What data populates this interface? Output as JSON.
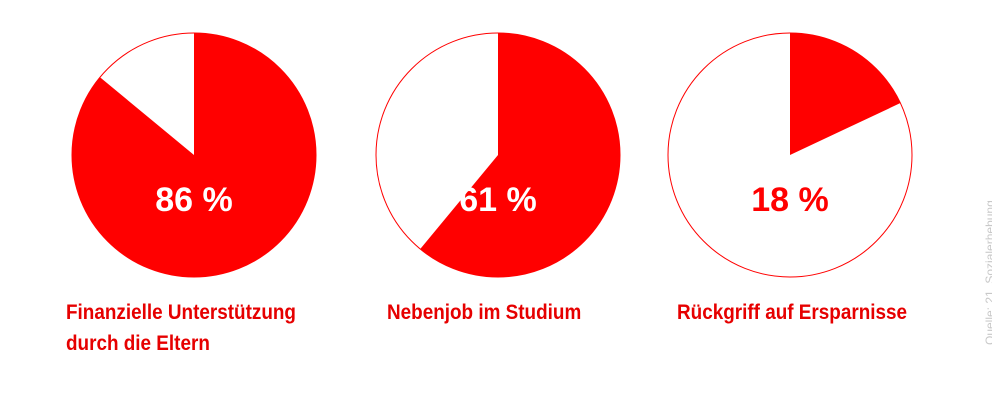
{
  "chart_data": [
    {
      "type": "pie",
      "value_percent": 86,
      "label": "86 %",
      "caption": [
        "Finanzielle Unterstützung",
        "durch die Eltern"
      ]
    },
    {
      "type": "pie",
      "value_percent": 61,
      "label": "61 %",
      "caption": [
        "Nebenjob im Studium"
      ]
    },
    {
      "type": "pie",
      "value_percent": 18,
      "label": "18 %",
      "caption": [
        "Rückgriff auf Ersparnisse"
      ]
    }
  ],
  "colors": {
    "accent": "#ff0000",
    "label_on_fill": "#ffffff",
    "caption": "#e60000",
    "source": "#c8c8c8"
  },
  "source": "Quelle: 21. Sozialerhebung"
}
